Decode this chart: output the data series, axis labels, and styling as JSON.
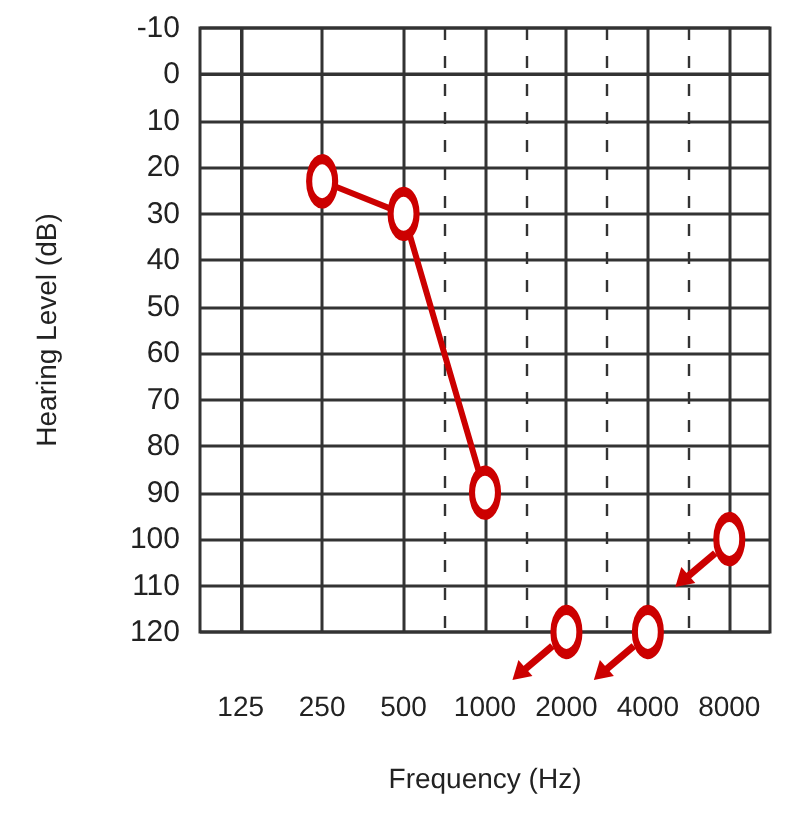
{
  "chart_data": {
    "type": "line",
    "xlabel": "Frequency (Hz)",
    "ylabel": "Hearing Level (dB)",
    "categories": [
      "125",
      "250",
      "500",
      "1000",
      "2000",
      "4000",
      "8000"
    ],
    "series": [
      {
        "color": "#cc0000",
        "values": [
          null,
          23,
          30,
          90,
          null,
          null,
          null
        ]
      },
      {
        "type": "scatter",
        "color": "#cc0000",
        "values": [
          null,
          null,
          null,
          null,
          120,
          120,
          100
        ]
      }
    ],
    "ylim": [
      120,
      -10
    ],
    "yticks": [
      -10,
      0,
      10,
      20,
      30,
      40,
      50,
      60,
      70,
      80,
      90,
      100,
      110,
      120
    ],
    "grid": true,
    "marker": "circle",
    "line_style": "solid"
  }
}
